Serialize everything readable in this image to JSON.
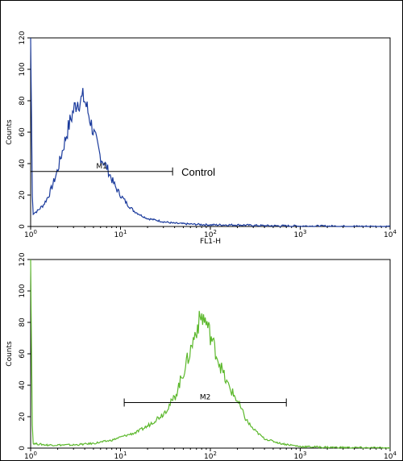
{
  "chart_data": [
    {
      "type": "line",
      "title": "",
      "xlabel": "FL1-H",
      "ylabel": "Counts",
      "x_scale": "log10",
      "xlim": [
        1,
        10000
      ],
      "ylim": [
        0,
        120
      ],
      "y_ticks": [
        "0",
        "20",
        "40",
        "60",
        "80",
        "100",
        "120"
      ],
      "x_ticks": [
        {
          "base": "10",
          "exp": "0"
        },
        {
          "base": "10",
          "exp": "1"
        },
        {
          "base": "10",
          "exp": "2"
        },
        {
          "base": "10",
          "exp": "3"
        },
        {
          "base": "10",
          "exp": "4"
        }
      ],
      "series": [
        {
          "color": "#1a3a9c",
          "x": [
            1.0,
            1.05,
            1.2,
            1.4,
            1.6,
            1.8,
            2.0,
            2.3,
            2.6,
            3.0,
            3.3,
            3.6,
            3.9,
            4.2,
            4.6,
            5.0,
            5.5,
            6.0,
            7.0,
            8.0,
            9.0,
            10.0,
            12.0,
            14.0,
            17.0,
            20.0,
            25.0,
            30.0,
            40.0,
            60.0,
            100.0,
            200.0,
            400.0,
            1000.0,
            10000.0
          ],
          "y": [
            120,
            8,
            10,
            14,
            20,
            28,
            36,
            50,
            62,
            74,
            80,
            80,
            82,
            76,
            68,
            60,
            52,
            44,
            38,
            30,
            24,
            20,
            14,
            10,
            7,
            5,
            4,
            3,
            2,
            1.5,
            1,
            1,
            0.5,
            0.3,
            0
          ]
        }
      ],
      "gate": {
        "label": "M1",
        "x1": 1.0,
        "x2": 38.0,
        "y": 35
      },
      "annotation": "Control"
    },
    {
      "type": "line",
      "title": "",
      "xlabel": "",
      "ylabel": "Counts",
      "x_scale": "log10",
      "xlim": [
        1,
        10000
      ],
      "ylim": [
        0,
        120
      ],
      "y_ticks": [
        "0",
        "20",
        "40",
        "60",
        "80",
        "100",
        "120"
      ],
      "x_ticks": [
        {
          "base": "10",
          "exp": "0"
        },
        {
          "base": "10",
          "exp": "1"
        },
        {
          "base": "10",
          "exp": "2"
        },
        {
          "base": "10",
          "exp": "3"
        },
        {
          "base": "10",
          "exp": "4"
        }
      ],
      "series": [
        {
          "color": "#5cb82c",
          "x": [
            1.0,
            1.05,
            1.5,
            2.0,
            3.0,
            5.0,
            8.0,
            10.0,
            15.0,
            20.0,
            30.0,
            40.0,
            50.0,
            60.0,
            70.0,
            80.0,
            90.0,
            100.0,
            120.0,
            150.0,
            200.0,
            250.0,
            300.0,
            400.0,
            600.0,
            1000.0,
            2000.0,
            5000.0,
            10000.0
          ],
          "y": [
            120,
            3,
            2,
            2,
            2,
            3,
            5,
            7,
            10,
            14,
            22,
            32,
            48,
            62,
            76,
            84,
            80,
            72,
            58,
            42,
            30,
            18,
            12,
            6,
            3,
            1,
            0.5,
            0.2,
            0
          ]
        }
      ],
      "gate": {
        "label": "M2",
        "x1": 11.0,
        "x2": 700.0,
        "y": 29
      }
    }
  ]
}
